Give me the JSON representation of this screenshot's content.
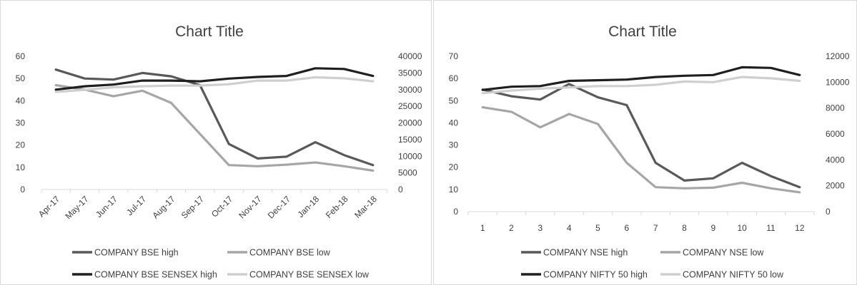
{
  "chart_data": [
    {
      "type": "line",
      "title": "Chart Title",
      "categories": [
        "Apr-17",
        "May-17",
        "Jun-17",
        "Jul-17",
        "Aug-17",
        "Sep-17",
        "Oct-17",
        "Nov-17",
        "Dec-17",
        "Jan-18",
        "Feb-18",
        "Mar-18"
      ],
      "y_left": {
        "lim": [
          0,
          60
        ],
        "ticks": [
          "0",
          "10",
          "20",
          "30",
          "40",
          "50",
          "60"
        ]
      },
      "y_right": {
        "lim": [
          0,
          40000
        ],
        "ticks": [
          "0",
          "5000",
          "10000",
          "15000",
          "20000",
          "25000",
          "30000",
          "35000",
          "40000"
        ]
      },
      "grid": false,
      "legend_position": "bottom",
      "series": [
        {
          "name": "COMPANY  BSE  high",
          "axis": "left",
          "color": "#595959",
          "values": [
            54,
            50,
            49.5,
            52.5,
            51,
            47,
            20.5,
            14,
            14.8,
            21.3,
            15.5,
            11
          ]
        },
        {
          "name": "COMPANY  BSE  low",
          "axis": "left",
          "color": "#a6a6a6",
          "values": [
            47,
            45,
            42,
            44.5,
            39,
            25,
            11,
            10.5,
            11.2,
            12.2,
            10.5,
            8.5
          ]
        },
        {
          "name": "COMPANY  BSE SENSEX  high",
          "axis": "right",
          "color": "#1f1f1f",
          "values": [
            30000,
            31000,
            31500,
            32700,
            32700,
            32500,
            33300,
            33800,
            34100,
            36400,
            36200,
            34100
          ]
        },
        {
          "name": "COMPANY  BSE SENSEX  low",
          "axis": "right",
          "color": "#cfcfcf",
          "values": [
            29300,
            29900,
            30700,
            31000,
            31200,
            31200,
            31600,
            32700,
            32700,
            33700,
            33400,
            32500
          ]
        }
      ]
    },
    {
      "type": "line",
      "title": "Chart Title",
      "categories": [
        "1",
        "2",
        "3",
        "4",
        "5",
        "6",
        "7",
        "8",
        "9",
        "10",
        "11",
        "12"
      ],
      "y_left": {
        "lim": [
          0,
          70
        ],
        "ticks": [
          "0",
          "10",
          "20",
          "30",
          "40",
          "50",
          "60",
          "70"
        ]
      },
      "y_right": {
        "lim": [
          0,
          12000
        ],
        "ticks": [
          "0",
          "2000",
          "4000",
          "6000",
          "8000",
          "10000",
          "12000"
        ]
      },
      "grid": false,
      "legend_position": "bottom",
      "series": [
        {
          "name": "COMPANY  NSE  high",
          "axis": "left",
          "color": "#595959",
          "values": [
            55,
            52,
            50.5,
            57.5,
            51.5,
            48,
            22,
            14,
            15,
            22,
            16,
            11
          ]
        },
        {
          "name": "COMPANY  NSE  low",
          "axis": "left",
          "color": "#a6a6a6",
          "values": [
            47,
            45,
            38,
            44,
            39.5,
            22,
            11,
            10.5,
            10.8,
            13,
            10.5,
            8.7
          ]
        },
        {
          "name": "COMPANY  NIFTY 50 high",
          "axis": "right",
          "color": "#1f1f1f",
          "values": [
            9400,
            9650,
            9700,
            10100,
            10150,
            10200,
            10400,
            10500,
            10550,
            11150,
            11100,
            10550
          ]
        },
        {
          "name": "COMPANY  NIFTY 50 low",
          "axis": "right",
          "color": "#cfcfcf",
          "values": [
            9150,
            9350,
            9500,
            9600,
            9700,
            9700,
            9800,
            10050,
            10000,
            10400,
            10300,
            10100
          ]
        }
      ]
    }
  ]
}
